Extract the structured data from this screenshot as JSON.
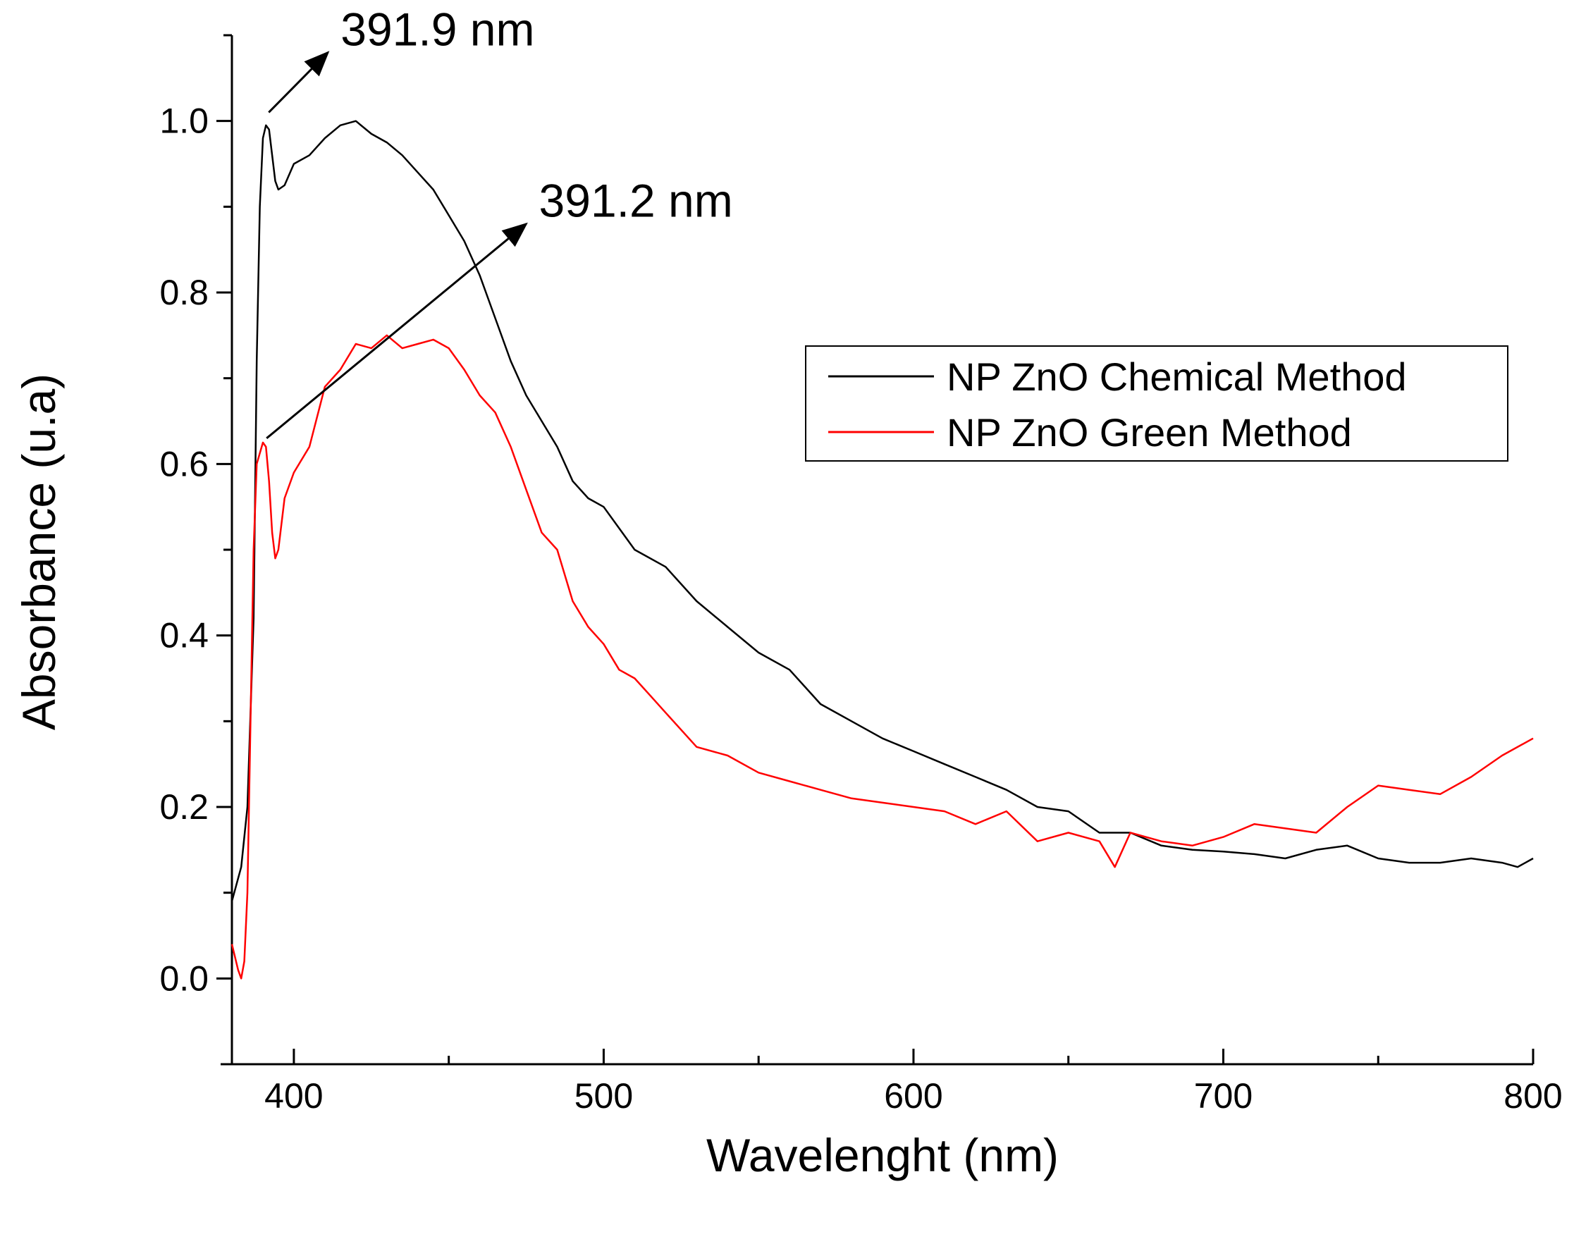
{
  "chart_data": {
    "type": "line",
    "title": "",
    "xlabel": "Wavelenght (nm)",
    "ylabel": "Absorbance (u.a)",
    "xlim": [
      380,
      800
    ],
    "ylim": [
      -0.1,
      1.1
    ],
    "x_ticks": [
      400,
      500,
      600,
      700,
      800
    ],
    "y_ticks": [
      0.0,
      0.2,
      0.4,
      0.6,
      0.8,
      1.0
    ],
    "x_tick_labels": [
      "400",
      "500",
      "600",
      "700",
      "800"
    ],
    "y_tick_labels": [
      "0.0",
      "0.2",
      "0.4",
      "0.6",
      "0.8",
      "1.0"
    ],
    "grid": false,
    "legend_position": "center-right",
    "series": [
      {
        "name": "NP ZnO Chemical Method",
        "color": "#000000",
        "x": [
          380,
          383,
          385,
          387,
          388,
          389,
          390,
          391,
          392,
          393,
          394,
          395,
          397,
          400,
          405,
          410,
          415,
          420,
          425,
          430,
          435,
          440,
          445,
          450,
          455,
          460,
          465,
          470,
          475,
          480,
          485,
          490,
          495,
          500,
          510,
          520,
          530,
          540,
          550,
          560,
          570,
          580,
          590,
          600,
          610,
          620,
          630,
          640,
          650,
          660,
          670,
          680,
          690,
          700,
          710,
          720,
          730,
          740,
          750,
          760,
          770,
          780,
          790,
          795,
          800
        ],
        "y": [
          0.09,
          0.13,
          0.2,
          0.42,
          0.72,
          0.9,
          0.98,
          0.995,
          0.99,
          0.96,
          0.93,
          0.92,
          0.925,
          0.95,
          0.96,
          0.98,
          0.995,
          1.0,
          0.985,
          0.975,
          0.96,
          0.94,
          0.92,
          0.89,
          0.86,
          0.82,
          0.77,
          0.72,
          0.68,
          0.65,
          0.62,
          0.58,
          0.56,
          0.55,
          0.5,
          0.48,
          0.44,
          0.41,
          0.38,
          0.36,
          0.32,
          0.3,
          0.28,
          0.265,
          0.25,
          0.235,
          0.22,
          0.2,
          0.195,
          0.17,
          0.17,
          0.155,
          0.15,
          0.148,
          0.145,
          0.14,
          0.15,
          0.155,
          0.14,
          0.135,
          0.135,
          0.14,
          0.135,
          0.13,
          0.14
        ]
      },
      {
        "name": "NP ZnO Green Method",
        "color": "#ff0000",
        "x": [
          380,
          382,
          383,
          384,
          385,
          386,
          387,
          388,
          390,
          391,
          392,
          393,
          394,
          395,
          397,
          400,
          405,
          410,
          415,
          420,
          425,
          430,
          435,
          440,
          445,
          450,
          455,
          460,
          465,
          470,
          475,
          480,
          485,
          490,
          495,
          500,
          505,
          510,
          515,
          520,
          530,
          540,
          550,
          560,
          570,
          580,
          590,
          600,
          610,
          620,
          630,
          640,
          650,
          660,
          665,
          670,
          680,
          690,
          700,
          710,
          720,
          730,
          740,
          750,
          760,
          770,
          780,
          790,
          800
        ],
        "y": [
          0.04,
          0.01,
          0.0,
          0.02,
          0.1,
          0.3,
          0.5,
          0.6,
          0.625,
          0.62,
          0.58,
          0.52,
          0.49,
          0.5,
          0.56,
          0.59,
          0.62,
          0.69,
          0.71,
          0.74,
          0.735,
          0.75,
          0.735,
          0.74,
          0.745,
          0.735,
          0.71,
          0.68,
          0.66,
          0.62,
          0.57,
          0.52,
          0.5,
          0.44,
          0.41,
          0.39,
          0.36,
          0.35,
          0.33,
          0.31,
          0.27,
          0.26,
          0.24,
          0.23,
          0.22,
          0.21,
          0.205,
          0.2,
          0.195,
          0.18,
          0.195,
          0.16,
          0.17,
          0.16,
          0.13,
          0.17,
          0.16,
          0.155,
          0.165,
          0.18,
          0.175,
          0.17,
          0.2,
          0.225,
          0.22,
          0.215,
          0.235,
          0.26,
          0.28
        ]
      }
    ],
    "annotations": [
      {
        "text": "391.9 nm",
        "x": 391.9,
        "y": 1.01,
        "arrow_to": [
          411,
          1.08
        ]
      },
      {
        "text": "391.2 nm",
        "x": 391.2,
        "y": 0.63,
        "arrow_to": [
          475,
          0.88
        ]
      }
    ]
  }
}
